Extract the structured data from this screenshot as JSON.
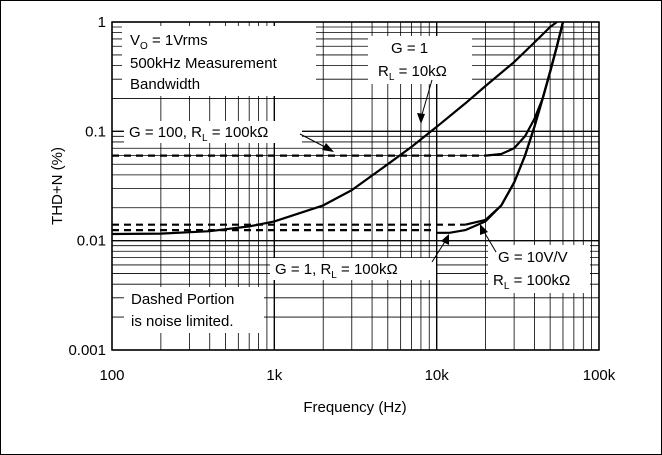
{
  "chart_data": {
    "type": "line",
    "title": "",
    "xlabel": "Frequency (Hz)",
    "ylabel": "THD+N (%)",
    "x_scale": "log",
    "y_scale": "log",
    "xlim": [
      100,
      100000
    ],
    "ylim": [
      0.001,
      1
    ],
    "grid": true,
    "x_ticks": [
      "100",
      "1k",
      "10k",
      "100k"
    ],
    "y_ticks": [
      "0.001",
      "0.01",
      "0.1",
      "1"
    ],
    "annotations": {
      "conditions_line1": "V",
      "conditions_line1_sub": "O",
      "conditions_line1_rest": " = 1Vrms",
      "conditions_line2": "500kHz Measurement",
      "conditions_line3": "Bandwidth",
      "g1_rl10k_line1": "G = 1",
      "g1_rl10k_line2": "R",
      "g1_rl10k_line2_sub": "L",
      "g1_rl10k_line2_rest": " = 10kΩ",
      "g100_a": "G = 100, R",
      "g100_sub": "L",
      "g100_b": " = 100kΩ",
      "g1_rl100k_a": "G = 1, R",
      "g1_rl100k_sub": "L",
      "g1_rl100k_b": " = 100kΩ",
      "g10_line1": "G = 10V/V",
      "g10_line2": "R",
      "g10_line2_sub": "L",
      "g10_line2_rest": " = 100kΩ",
      "noise_line1": "Dashed Portion",
      "noise_line2": "is noise limited."
    },
    "series": [
      {
        "name": "G = 1, RL = 10kΩ",
        "style": "solid",
        "points": [
          [
            100,
            0.0115
          ],
          [
            200,
            0.0116
          ],
          [
            400,
            0.0122
          ],
          [
            700,
            0.0135
          ],
          [
            1000,
            0.015
          ],
          [
            2000,
            0.021
          ],
          [
            3000,
            0.029
          ],
          [
            5000,
            0.05
          ],
          [
            7000,
            0.072
          ],
          [
            10000,
            0.11
          ],
          [
            15000,
            0.18
          ],
          [
            20000,
            0.26
          ],
          [
            30000,
            0.43
          ],
          [
            40000,
            0.65
          ],
          [
            50000,
            0.9
          ],
          [
            55000,
            1.0
          ]
        ]
      },
      {
        "name": "G = 100, RL = 100kΩ",
        "style": "dashed",
        "points": [
          [
            100,
            0.06
          ],
          [
            20000,
            0.06
          ]
        ]
      },
      {
        "name": "G = 100, RL = 100kΩ",
        "style": "solid",
        "points": [
          [
            20000,
            0.06
          ],
          [
            25000,
            0.062
          ],
          [
            30000,
            0.07
          ],
          [
            35000,
            0.09
          ],
          [
            40000,
            0.13
          ],
          [
            45000,
            0.2
          ],
          [
            50000,
            0.35
          ],
          [
            55000,
            0.6
          ],
          [
            60000,
            1.0
          ]
        ]
      },
      {
        "name": "G = 10V/V, RL = 100kΩ",
        "style": "dashed",
        "points": [
          [
            100,
            0.014
          ],
          [
            15000,
            0.014
          ]
        ]
      },
      {
        "name": "G = 10V/V, RL = 100kΩ",
        "style": "solid",
        "points": [
          [
            15000,
            0.014
          ],
          [
            20000,
            0.0155
          ],
          [
            25000,
            0.021
          ],
          [
            30000,
            0.034
          ],
          [
            35000,
            0.06
          ],
          [
            40000,
            0.11
          ],
          [
            45000,
            0.2
          ],
          [
            50000,
            0.35
          ],
          [
            55000,
            0.6
          ],
          [
            60000,
            1.0
          ]
        ]
      },
      {
        "name": "G = 1, RL = 100kΩ",
        "style": "dashed",
        "points": [
          [
            100,
            0.0125
          ],
          [
            10000,
            0.0125
          ]
        ]
      },
      {
        "name": "G = 1, RL = 100kΩ",
        "style": "solid",
        "points": [
          [
            10000,
            0.0118
          ],
          [
            12000,
            0.0118
          ],
          [
            15000,
            0.0125
          ],
          [
            20000,
            0.015
          ],
          [
            25000,
            0.021
          ],
          [
            30000,
            0.034
          ],
          [
            35000,
            0.06
          ],
          [
            40000,
            0.11
          ],
          [
            45000,
            0.2
          ],
          [
            50000,
            0.35
          ],
          [
            55000,
            0.6
          ],
          [
            60000,
            1.0
          ]
        ]
      }
    ]
  }
}
